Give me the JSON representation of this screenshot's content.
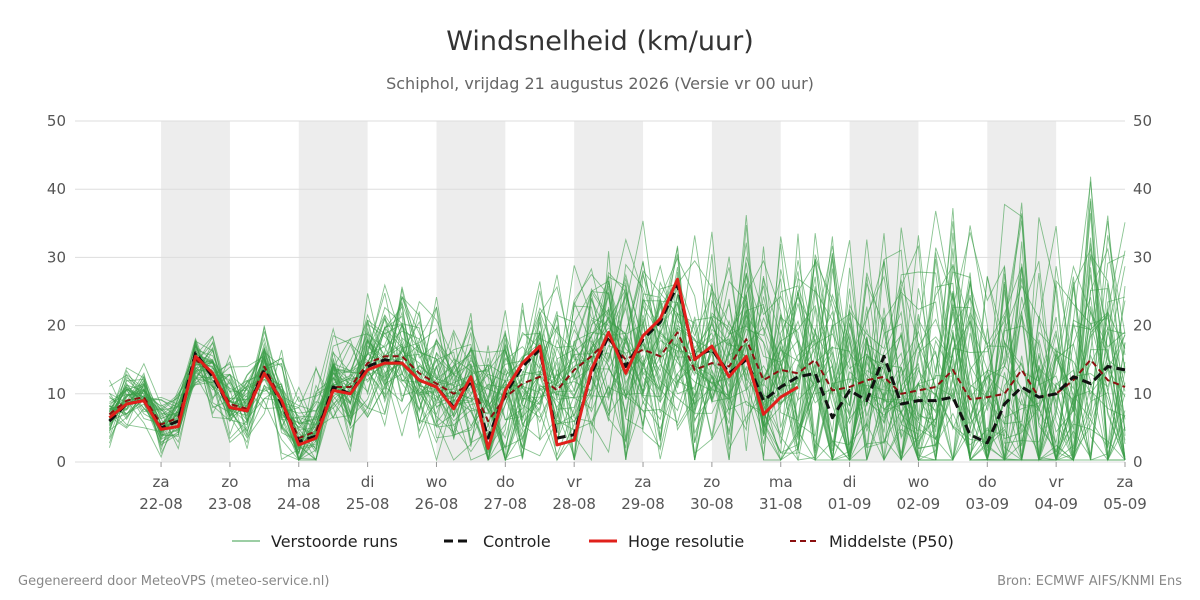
{
  "chart_data": {
    "type": "line",
    "title": "Windsnelheid (km/uur)",
    "subtitle": "Schiphol, vrijdag 21 augustus 2026 (Versie vr 00 uur)",
    "ylim": [
      0,
      50
    ],
    "yticks": [
      0,
      10,
      20,
      30,
      40,
      50
    ],
    "x_range_days": [
      -1.25,
      14
    ],
    "x_ticks": [
      {
        "day": 0,
        "weekday": "za",
        "date": "22-08"
      },
      {
        "day": 1,
        "weekday": "zo",
        "date": "23-08"
      },
      {
        "day": 2,
        "weekday": "ma",
        "date": "24-08"
      },
      {
        "day": 3,
        "weekday": "di",
        "date": "25-08"
      },
      {
        "day": 4,
        "weekday": "wo",
        "date": "26-08"
      },
      {
        "day": 5,
        "weekday": "do",
        "date": "27-08"
      },
      {
        "day": 6,
        "weekday": "vr",
        "date": "28-08"
      },
      {
        "day": 7,
        "weekday": "za",
        "date": "29-08"
      },
      {
        "day": 8,
        "weekday": "zo",
        "date": "30-08"
      },
      {
        "day": 9,
        "weekday": "ma",
        "date": "31-08"
      },
      {
        "day": 10,
        "weekday": "di",
        "date": "01-09"
      },
      {
        "day": 11,
        "weekday": "wo",
        "date": "02-09"
      },
      {
        "day": 12,
        "weekday": "do",
        "date": "03-09"
      },
      {
        "day": 13,
        "weekday": "vr",
        "date": "04-09"
      },
      {
        "day": 14,
        "weekday": "za",
        "date": "05-09"
      }
    ],
    "shaded_days": [
      0,
      2,
      4,
      6,
      8,
      10,
      12
    ],
    "colors": {
      "perturbed": "#3a9d48",
      "control": "#111111",
      "high_res": "#e0201b",
      "median": "#8b1010",
      "shade": "#ededed",
      "grid": "#dddddd"
    },
    "legend": {
      "perturbed": "Verstoorde runs",
      "control": "Controle",
      "high_res": "Hoge resolutie",
      "median": "Middelste (P50)"
    },
    "series": [
      {
        "key": "high_res",
        "x": [
          -0.75,
          -0.5,
          -0.25,
          0,
          0.25,
          0.5,
          0.75,
          1,
          1.25,
          1.5,
          1.75,
          2,
          2.25,
          2.5,
          2.75,
          3,
          3.25,
          3.5,
          3.75,
          4,
          4.25,
          4.5,
          4.75,
          5,
          5.25,
          5.5,
          5.75,
          6,
          6.25,
          6.5,
          6.75,
          7,
          7.25,
          7.5,
          7.75,
          8,
          8.25,
          8.5,
          8.75,
          9,
          9.25
        ],
        "y": [
          6.5,
          8.5,
          9,
          4.8,
          5.2,
          15.5,
          13,
          8,
          7.5,
          13,
          9,
          2.5,
          3.5,
          10.5,
          10,
          13.5,
          14.5,
          14.5,
          12,
          11,
          7.8,
          12.5,
          2,
          10.5,
          14.5,
          17,
          2.5,
          3.2,
          13.5,
          19,
          13,
          18.5,
          21,
          26.8,
          15,
          17,
          12.5,
          15.5,
          7,
          9.5,
          11
        ]
      },
      {
        "key": "control",
        "x": [
          -0.75,
          -0.5,
          -0.25,
          0,
          0.25,
          0.5,
          0.75,
          1,
          1.25,
          1.5,
          1.75,
          2,
          2.25,
          2.5,
          2.75,
          3,
          3.25,
          3.5,
          3.75,
          4,
          4.25,
          4.5,
          4.75,
          5,
          5.25,
          5.5,
          5.75,
          6,
          6.25,
          6.5,
          6.75,
          7,
          7.25,
          7.5,
          7.75,
          8,
          8.25,
          8.5,
          8.75,
          9,
          9.25,
          9.5,
          9.75,
          10,
          10.25,
          10.5,
          10.75,
          11,
          11.25,
          11.5,
          11.75,
          12,
          12.25,
          12.5,
          12.75,
          13,
          13.25,
          13.5,
          13.75,
          14
        ],
        "y": [
          6,
          8.5,
          9,
          5,
          6,
          16,
          12.5,
          8,
          7.5,
          13.5,
          8.5,
          3,
          3.8,
          11,
          10,
          14,
          15,
          14.5,
          12,
          11,
          8,
          12,
          3.5,
          10,
          14,
          16.5,
          3.5,
          4,
          13,
          18.5,
          14,
          18,
          20.5,
          26,
          15.5,
          16.5,
          13,
          15,
          9,
          11,
          12.5,
          13,
          6.5,
          10.5,
          9,
          15.5,
          8.5,
          9,
          9,
          9.5,
          4,
          2.8,
          8.5,
          11,
          9.5,
          10,
          12.5,
          11.5,
          14,
          13.5
        ]
      },
      {
        "key": "median",
        "x": [
          -0.75,
          -0.5,
          -0.25,
          0,
          0.25,
          0.5,
          0.75,
          1,
          1.25,
          1.5,
          1.75,
          2,
          2.25,
          2.5,
          2.75,
          3,
          3.25,
          3.5,
          3.75,
          4,
          4.25,
          4.5,
          4.75,
          5,
          5.25,
          5.5,
          5.75,
          6,
          6.25,
          6.5,
          6.75,
          7,
          7.25,
          7.5,
          7.75,
          8,
          8.25,
          8.5,
          8.75,
          9,
          9.25,
          9.5,
          9.75,
          10,
          10.25,
          10.5,
          10.75,
          11,
          11.25,
          11.5,
          11.75,
          12,
          12.25,
          12.5,
          12.75,
          13,
          13.25,
          13.5,
          13.75,
          14
        ],
        "y": [
          7,
          9,
          9.5,
          5.5,
          6.5,
          15,
          13,
          8.5,
          7.8,
          14,
          9,
          3.5,
          4.5,
          11,
          11,
          14.5,
          15.5,
          15.5,
          13,
          11.5,
          10,
          11.5,
          6,
          9.5,
          11.5,
          12.5,
          10.5,
          13.5,
          15.5,
          18,
          15,
          16.5,
          15.5,
          19,
          13.5,
          14.5,
          14,
          18,
          12,
          13.5,
          13,
          15,
          10.5,
          11,
          12,
          12.5,
          10,
          10.5,
          11,
          13.5,
          9.2,
          9.5,
          10,
          13.5,
          9.5,
          10,
          12,
          15,
          12,
          11
        ]
      }
    ]
  },
  "footer": {
    "left": "Gegenereerd door MeteoVPS (meteo-service.nl)",
    "right": "Bron: ECMWF AIFS/KNMI Ens"
  }
}
